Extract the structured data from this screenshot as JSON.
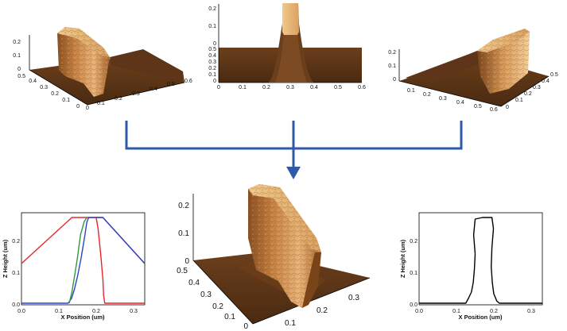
{
  "colors": {
    "arrow": "#2f5aa8",
    "floor": "#5a3416",
    "line_red": "#e8262a",
    "line_green": "#2e9a3a",
    "line_blue": "#2a46c8",
    "profile": "#000000"
  },
  "top_left": {
    "z_ticks": [
      "0.2",
      "0.1",
      "0"
    ],
    "y_ticks": [
      "0.5",
      "0.4",
      "0.3",
      "0.2",
      "0.1",
      "0"
    ],
    "x_ticks": [
      "0",
      "0.1",
      "0.2",
      "0.3",
      "0.4",
      "0.5",
      "0.6"
    ]
  },
  "top_center": {
    "z_ticks": [
      "0.2",
      "0.1",
      "0"
    ],
    "y_ticks": [
      "0.5",
      "0.4",
      "0.3",
      "0.2",
      "0.1",
      "0"
    ],
    "x_ticks": [
      "0",
      "0.1",
      "0.2",
      "0.3",
      "0.4",
      "0.5",
      "0.6"
    ]
  },
  "top_right": {
    "z_ticks": [
      "0.2",
      "0.1",
      "0"
    ],
    "x_ticks": [
      "0.1",
      "0.2",
      "0.3",
      "0.4",
      "0.5",
      "0.6"
    ],
    "y_ticks": [
      "0",
      "0.1",
      "0.2",
      "0.3",
      "0.4",
      "0.5"
    ]
  },
  "bottom_center": {
    "z_ticks": [
      "0.2",
      "0.1",
      "0"
    ],
    "y_ticks": [
      "0.5",
      "0.4",
      "0.3",
      "0.2",
      "0.1",
      "0"
    ],
    "x_ticks": [
      "0.1",
      "0.2",
      "0.3"
    ]
  },
  "chart_data": [
    {
      "type": "line",
      "xlabel": "X Position (um)",
      "ylabel": "Z Height (um)",
      "xlim": [
        0,
        0.33
      ],
      "ylim": [
        0,
        0.29
      ],
      "x_ticks": [
        "0.0",
        "0.1",
        "0.2",
        "0.3"
      ],
      "y_ticks": [
        "0.0",
        "0.1",
        "0.2"
      ],
      "series": [
        {
          "color": "#e8262a",
          "x": [
            0,
            0.135,
            0.218,
            0.33
          ],
          "y": [
            0.13,
            0.275,
            0.275,
            0.13
          ]
        },
        {
          "color": "#2a46c8",
          "x": [
            0,
            0.125,
            0.134,
            0.142,
            0.15,
            0.16,
            0.17,
            0.175,
            0.18,
            0.218,
            0.33
          ],
          "y": [
            0.005,
            0.005,
            0.02,
            0.05,
            0.09,
            0.15,
            0.22,
            0.26,
            0.275,
            0.275,
            0.13
          ]
        },
        {
          "color": "#2e9a3a",
          "x": [
            0.128,
            0.135,
            0.142,
            0.15,
            0.158,
            0.168,
            0.175
          ],
          "y": [
            0.005,
            0.04,
            0.09,
            0.15,
            0.22,
            0.262,
            0.275
          ]
        },
        {
          "color": "#e8262a",
          "x": [
            0.2,
            0.205,
            0.212,
            0.218,
            0.22,
            0.223,
            0.23,
            0.33
          ],
          "y": [
            0.275,
            0.24,
            0.16,
            0.08,
            0.03,
            0.005,
            0.005,
            0.005
          ]
        }
      ]
    },
    {
      "type": "line",
      "xlabel": "X Position (um)",
      "ylabel": "Z Height (um)",
      "xlim": [
        0,
        0.33
      ],
      "ylim": [
        0,
        0.29
      ],
      "x_ticks": [
        "0.0",
        "0.1",
        "0.2",
        "0.3"
      ],
      "y_ticks": [
        "0.0",
        "0.1",
        "0.2"
      ],
      "series": [
        {
          "color": "#000000",
          "x": [
            0,
            0.125,
            0.132,
            0.14,
            0.145,
            0.148,
            0.15,
            0.146,
            0.15,
            0.17,
            0.195,
            0.199,
            0.195,
            0.193,
            0.196,
            0.2,
            0.208,
            0.215,
            0.33
          ],
          "y": [
            0.005,
            0.005,
            0.02,
            0.04,
            0.07,
            0.11,
            0.16,
            0.22,
            0.27,
            0.275,
            0.275,
            0.24,
            0.18,
            0.12,
            0.07,
            0.035,
            0.012,
            0.005,
            0.005
          ]
        }
      ]
    }
  ]
}
